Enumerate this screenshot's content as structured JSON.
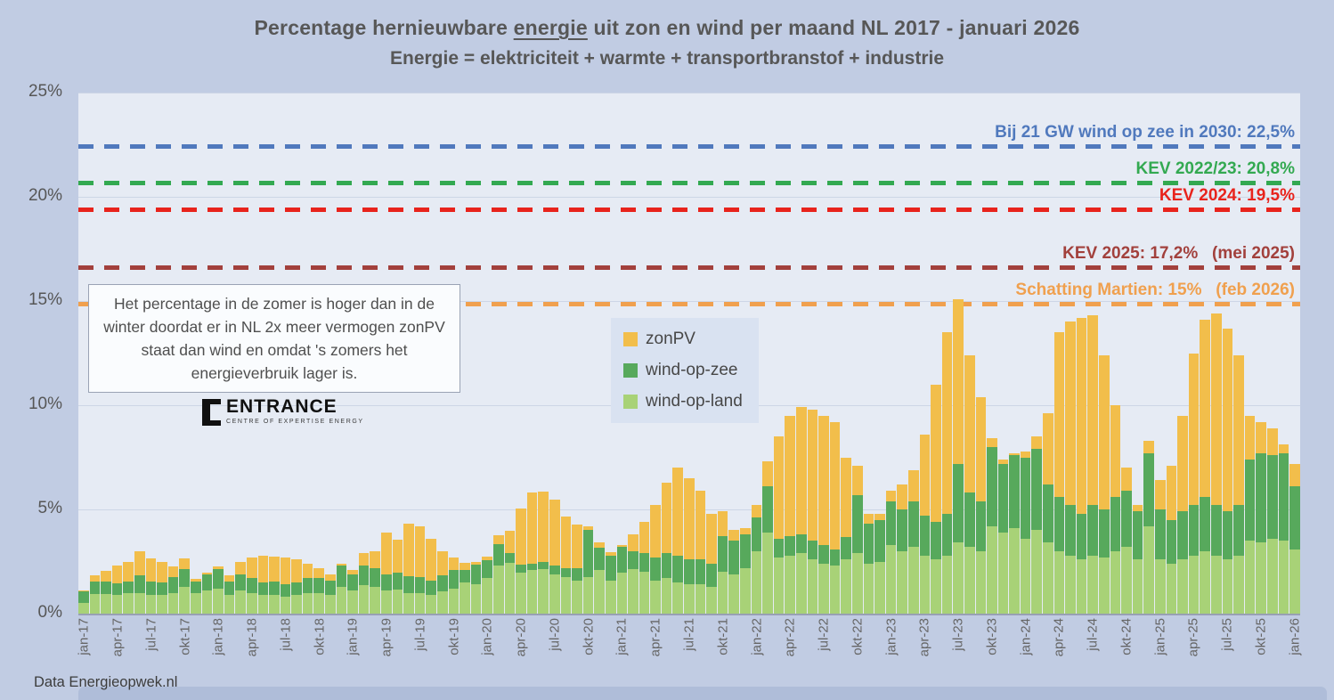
{
  "title": {
    "line1_prefix": "Percentage hernieuwbare ",
    "line1_underlined": "energie",
    "line1_suffix": " uit zon en wind per maand NL 2017 - januari 2026",
    "line2": "Energie = elektriciteit + warmte + transportbranstof + industrie"
  },
  "source_note": "Data Energieopwek.nl",
  "annotation_box": {
    "text": "Het percentage in de zomer is hoger dan in de winter doordat er in NL 2x meer vermogen zonPV staat dan wind en omdat 's zomers het energieverbruik lager is."
  },
  "logo": {
    "name": "ENTRANCE",
    "tagline": "CENTRE OF EXPERTISE ENERGY"
  },
  "y_axis": {
    "min": 0,
    "max": 25,
    "tick_step": 5,
    "tick_labels": [
      "0%",
      "5%",
      "10%",
      "15%",
      "20%",
      "25%"
    ]
  },
  "reference_lines": [
    {
      "label": "Bij 21 GW wind op zee in 2030: 22,5%",
      "value": 22.5,
      "line_value": 22.4,
      "color": "#5079bd"
    },
    {
      "label": "KEV 2022/23: 20,8%",
      "value": 20.8,
      "line_value": 20.65,
      "color": "#33a951"
    },
    {
      "label": "KEV 2024: 19,5%",
      "value": 19.5,
      "line_value": 19.35,
      "color": "#e8231c"
    },
    {
      "label": "KEV 2025: 17,2%   (mei 2025)",
      "value": 17.2,
      "line_value": 16.6,
      "color": "#a2403c"
    },
    {
      "label": "Schatting Martien: 15%   (feb 2026)",
      "value": 15,
      "line_value": 14.85,
      "color": "#f0a04e"
    }
  ],
  "legend": {
    "items": [
      {
        "label": "zonPV",
        "color": "#F2BE4B"
      },
      {
        "label": "wind-op-zee",
        "color": "#57A95C"
      },
      {
        "label": "wind-op-land",
        "color": "#A8D277"
      }
    ]
  },
  "chart_data": {
    "type": "bar",
    "stacked": true,
    "unit": "%",
    "title": "Percentage hernieuwbare energie uit zon en wind per maand NL 2017 - januari 2026",
    "ylim": [
      0,
      25
    ],
    "grid": true,
    "legend_position": "center",
    "x_tick_every": 3,
    "x": [
      "jan-17",
      "feb-17",
      "mrt-17",
      "apr-17",
      "mei-17",
      "jun-17",
      "jul-17",
      "aug-17",
      "sep-17",
      "okt-17",
      "nov-17",
      "dec-17",
      "jan-18",
      "feb-18",
      "mrt-18",
      "apr-18",
      "mei-18",
      "jun-18",
      "jul-18",
      "aug-18",
      "sep-18",
      "okt-18",
      "nov-18",
      "dec-18",
      "jan-19",
      "feb-19",
      "mrt-19",
      "apr-19",
      "mei-19",
      "jun-19",
      "jul-19",
      "aug-19",
      "sep-19",
      "okt-19",
      "nov-19",
      "dec-19",
      "jan-20",
      "feb-20",
      "mrt-20",
      "apr-20",
      "mei-20",
      "jun-20",
      "jul-20",
      "aug-20",
      "sep-20",
      "okt-20",
      "nov-20",
      "dec-20",
      "jan-21",
      "feb-21",
      "mrt-21",
      "apr-21",
      "mei-21",
      "jun-21",
      "jul-21",
      "aug-21",
      "sep-21",
      "okt-21",
      "nov-21",
      "dec-21",
      "jan-22",
      "feb-22",
      "mrt-22",
      "apr-22",
      "mei-22",
      "jun-22",
      "jul-22",
      "aug-22",
      "sep-22",
      "okt-22",
      "nov-22",
      "dec-22",
      "jan-23",
      "feb-23",
      "mrt-23",
      "apr-23",
      "mei-23",
      "jun-23",
      "jul-23",
      "aug-23",
      "sep-23",
      "okt-23",
      "nov-23",
      "dec-23",
      "jan-24",
      "feb-24",
      "mrt-24",
      "apr-24",
      "mei-24",
      "jun-24",
      "jul-24",
      "aug-24",
      "sep-24",
      "okt-24",
      "nov-24",
      "dec-24",
      "jan-25",
      "feb-25",
      "mrt-25",
      "apr-25",
      "mei-25",
      "jun-25",
      "jul-25",
      "aug-25",
      "sep-25",
      "okt-25",
      "nov-25",
      "dec-25",
      "jan-26"
    ],
    "series": [
      {
        "name": "wind-op-land",
        "color": "#A8D277",
        "values": [
          0.5,
          0.95,
          0.95,
          0.9,
          1.0,
          1.0,
          0.9,
          0.9,
          1.0,
          1.3,
          1.0,
          1.1,
          1.2,
          0.9,
          1.1,
          1.0,
          0.9,
          0.9,
          0.8,
          0.9,
          1.0,
          1.0,
          0.9,
          1.3,
          1.1,
          1.35,
          1.3,
          1.1,
          1.15,
          1.0,
          1.0,
          0.9,
          1.05,
          1.2,
          1.5,
          1.4,
          1.7,
          2.3,
          2.45,
          1.95,
          2.1,
          2.15,
          1.9,
          1.75,
          1.6,
          1.75,
          2.1,
          1.6,
          1.95,
          2.15,
          2.0,
          1.6,
          1.7,
          1.5,
          1.4,
          1.4,
          1.3,
          2.0,
          1.9,
          2.2,
          3.0,
          3.9,
          2.7,
          2.8,
          2.9,
          2.6,
          2.4,
          2.3,
          2.6,
          2.9,
          2.4,
          2.5,
          3.3,
          3.0,
          3.2,
          2.8,
          2.6,
          2.8,
          3.4,
          3.2,
          3.0,
          4.2,
          3.9,
          4.1,
          3.6,
          4.0,
          3.4,
          3.0,
          2.8,
          2.6,
          2.8,
          2.7,
          3.0,
          3.2,
          2.6,
          4.2,
          2.6,
          2.4,
          2.6,
          2.8,
          3.0,
          2.8,
          2.6,
          2.8,
          3.5,
          3.4,
          3.6,
          3.5,
          3.1
        ]
      },
      {
        "name": "wind-op-zee",
        "color": "#57A95C",
        "values": [
          0.55,
          0.6,
          0.6,
          0.55,
          0.55,
          0.85,
          0.65,
          0.6,
          0.75,
          0.85,
          0.55,
          0.8,
          0.95,
          0.65,
          0.8,
          0.7,
          0.6,
          0.65,
          0.6,
          0.6,
          0.7,
          0.7,
          0.7,
          1.0,
          0.8,
          0.95,
          0.9,
          0.8,
          0.8,
          0.8,
          0.75,
          0.7,
          0.8,
          0.9,
          0.6,
          0.95,
          0.85,
          1.05,
          0.45,
          0.4,
          0.3,
          0.35,
          0.4,
          0.45,
          0.6,
          2.25,
          1.05,
          1.2,
          1.25,
          0.85,
          0.9,
          1.1,
          1.2,
          1.3,
          1.2,
          1.2,
          1.1,
          1.7,
          1.6,
          1.6,
          1.6,
          2.2,
          0.9,
          0.9,
          0.9,
          0.9,
          0.9,
          0.8,
          1.1,
          2.8,
          1.9,
          2.0,
          2.1,
          2.0,
          2.2,
          1.9,
          1.8,
          2.0,
          3.8,
          2.6,
          2.4,
          3.8,
          3.3,
          3.5,
          3.9,
          3.9,
          2.8,
          2.6,
          2.4,
          2.2,
          2.4,
          2.3,
          2.6,
          2.7,
          2.3,
          3.5,
          2.4,
          2.1,
          2.3,
          2.4,
          2.6,
          2.4,
          2.3,
          2.4,
          3.9,
          4.3,
          4.0,
          4.2,
          3.0
        ]
      },
      {
        "name": "zonPV",
        "color": "#F2BE4B",
        "values": [
          0.05,
          0.3,
          0.5,
          0.85,
          0.95,
          1.15,
          1.1,
          1.0,
          0.5,
          0.5,
          0.1,
          0.05,
          0.1,
          0.3,
          0.6,
          1.0,
          1.3,
          1.2,
          1.3,
          1.1,
          0.7,
          0.5,
          0.3,
          0.1,
          0.2,
          0.6,
          0.8,
          2.0,
          1.6,
          2.5,
          2.45,
          2.0,
          1.15,
          0.6,
          0.35,
          0.15,
          0.2,
          0.4,
          1.1,
          2.7,
          3.4,
          3.35,
          3.15,
          2.45,
          2.1,
          0.2,
          0.25,
          0.15,
          0.1,
          0.8,
          1.5,
          2.5,
          3.4,
          4.2,
          3.9,
          3.3,
          2.4,
          1.2,
          0.5,
          0.3,
          0.6,
          1.2,
          4.9,
          5.8,
          6.1,
          6.3,
          6.2,
          6.1,
          3.8,
          1.4,
          0.5,
          0.3,
          0.5,
          1.2,
          1.5,
          3.9,
          6.6,
          8.7,
          7.9,
          6.6,
          5.0,
          0.4,
          0.2,
          0.1,
          0.3,
          0.6,
          3.4,
          7.9,
          8.8,
          9.4,
          9.1,
          7.4,
          4.4,
          1.1,
          0.3,
          0.6,
          1.4,
          2.6,
          4.6,
          7.3,
          8.5,
          9.2,
          8.8,
          7.2,
          2.1,
          1.5,
          1.3,
          0.4,
          1.1
        ]
      }
    ]
  }
}
